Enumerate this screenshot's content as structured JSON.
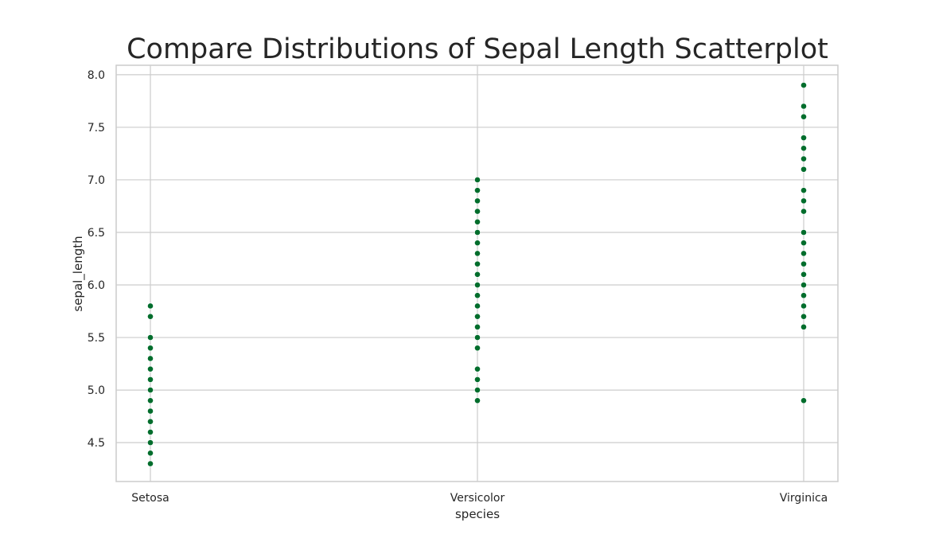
{
  "chart_data": {
    "type": "scatter",
    "title": "Compare Distributions of Sepal Length Scatterplot",
    "xlabel": "species",
    "ylabel": "sepal_length",
    "categories": [
      "Setosa",
      "Versicolor",
      "Virginica"
    ],
    "ylim": [
      4.13,
      8.09
    ],
    "yticks": [
      "4.5",
      "5.0",
      "5.5",
      "6.0",
      "6.5",
      "7.0",
      "7.5",
      "8.0"
    ],
    "grid": true,
    "marker_color": "#006d2c",
    "points": [
      {
        "category": "Setosa",
        "values": [
          4.3,
          4.4,
          4.5,
          4.6,
          4.7,
          4.8,
          4.9,
          5.0,
          5.1,
          5.2,
          5.3,
          5.4,
          5.5,
          5.7,
          5.8
        ]
      },
      {
        "category": "Versicolor",
        "values": [
          4.9,
          5.0,
          5.1,
          5.2,
          5.4,
          5.5,
          5.6,
          5.7,
          5.8,
          5.9,
          6.0,
          6.1,
          6.2,
          6.3,
          6.4,
          6.5,
          6.6,
          6.7,
          6.8,
          6.9,
          7.0
        ]
      },
      {
        "category": "Virginica",
        "values": [
          4.9,
          5.6,
          5.7,
          5.8,
          5.9,
          6.0,
          6.1,
          6.2,
          6.3,
          6.4,
          6.5,
          6.7,
          6.8,
          6.9,
          7.1,
          7.2,
          7.3,
          7.4,
          7.6,
          7.7,
          7.9
        ]
      }
    ]
  }
}
